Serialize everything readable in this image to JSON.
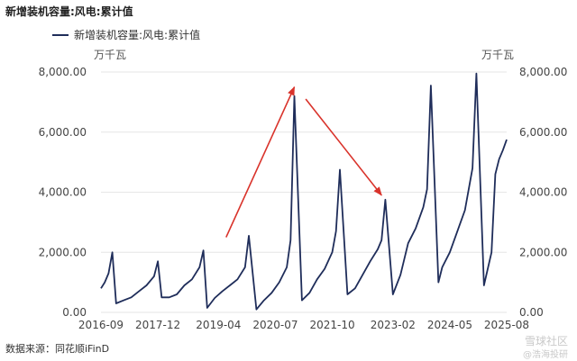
{
  "chart_data": {
    "type": "line",
    "title": "新增装机容量:风电:累计值",
    "legend": "新增装机容量:风电:累计值",
    "unit_left": "万千瓦",
    "unit_right": "万千瓦",
    "series_color": "#1f2d5a",
    "arrow_color": "#d9332b",
    "x_tick_labels": [
      "2016-09",
      "2017-12",
      "2019-04",
      "2020-07",
      "2021-10",
      "2023-02",
      "2024-05",
      "2025-08"
    ],
    "y_ticks": [
      0,
      2000,
      4000,
      6000,
      8000
    ],
    "y_tick_labels": [
      "0.00",
      "2,000.00",
      "4,000.00",
      "6,000.00",
      "8,000.00"
    ],
    "ylim": [
      0,
      8000
    ],
    "y_right_tick_labels": [
      "0.00",
      "2,000.00",
      "4,000.00",
      "6,000.00",
      "8,000.00"
    ],
    "series": [
      {
        "name": "新增装机容量:风电:累计值",
        "points": [
          [
            "2016-09",
            800
          ],
          [
            "2016-10",
            1000
          ],
          [
            "2016-11",
            1300
          ],
          [
            "2016-12",
            2000
          ],
          [
            "2017-01",
            300
          ],
          [
            "2017-03",
            400
          ],
          [
            "2017-05",
            500
          ],
          [
            "2017-07",
            700
          ],
          [
            "2017-09",
            900
          ],
          [
            "2017-11",
            1200
          ],
          [
            "2017-12",
            1700
          ],
          [
            "2018-01",
            500
          ],
          [
            "2018-03",
            500
          ],
          [
            "2018-05",
            600
          ],
          [
            "2018-07",
            900
          ],
          [
            "2018-09",
            1100
          ],
          [
            "2018-11",
            1500
          ],
          [
            "2018-12",
            2060
          ],
          [
            "2019-01",
            150
          ],
          [
            "2019-03",
            480
          ],
          [
            "2019-05",
            700
          ],
          [
            "2019-07",
            900
          ],
          [
            "2019-09",
            1100
          ],
          [
            "2019-11",
            1500
          ],
          [
            "2019-12",
            2550
          ],
          [
            "2020-02",
            100
          ],
          [
            "2020-04",
            400
          ],
          [
            "2020-06",
            650
          ],
          [
            "2020-08",
            1000
          ],
          [
            "2020-10",
            1500
          ],
          [
            "2020-11",
            2400
          ],
          [
            "2020-12",
            7200
          ],
          [
            "2021-02",
            400
          ],
          [
            "2021-04",
            650
          ],
          [
            "2021-06",
            1100
          ],
          [
            "2021-08",
            1450
          ],
          [
            "2021-10",
            2000
          ],
          [
            "2021-11",
            2700
          ],
          [
            "2021-12",
            4750
          ],
          [
            "2022-02",
            600
          ],
          [
            "2022-04",
            800
          ],
          [
            "2022-06",
            1250
          ],
          [
            "2022-08",
            1700
          ],
          [
            "2022-10",
            2100
          ],
          [
            "2022-11",
            2400
          ],
          [
            "2022-12",
            3750
          ],
          [
            "2023-02",
            600
          ],
          [
            "2023-04",
            1250
          ],
          [
            "2023-06",
            2300
          ],
          [
            "2023-08",
            2800
          ],
          [
            "2023-10",
            3500
          ],
          [
            "2023-11",
            4100
          ],
          [
            "2023-12",
            7550
          ],
          [
            "2024-02",
            1000
          ],
          [
            "2024-03",
            1500
          ],
          [
            "2024-05",
            2000
          ],
          [
            "2024-07",
            2700
          ],
          [
            "2024-09",
            3400
          ],
          [
            "2024-11",
            4800
          ],
          [
            "2024-12",
            7950
          ],
          [
            "2025-02",
            900
          ],
          [
            "2025-04",
            2000
          ],
          [
            "2025-05",
            4600
          ],
          [
            "2025-06",
            5100
          ],
          [
            "2025-07",
            5400
          ],
          [
            "2025-08",
            5750
          ]
        ]
      }
    ],
    "annotations": [
      {
        "type": "arrow",
        "from": [
          "2019-06",
          2500
        ],
        "to": [
          "2020-12",
          7500
        ]
      },
      {
        "type": "arrow",
        "from": [
          "2021-03",
          7100
        ],
        "to": [
          "2022-11",
          3900
        ]
      }
    ]
  },
  "footer": {
    "source": "数据来源：同花顺iFinD",
    "watermark": "雪球社区",
    "watermark2": "@浩海投研"
  }
}
